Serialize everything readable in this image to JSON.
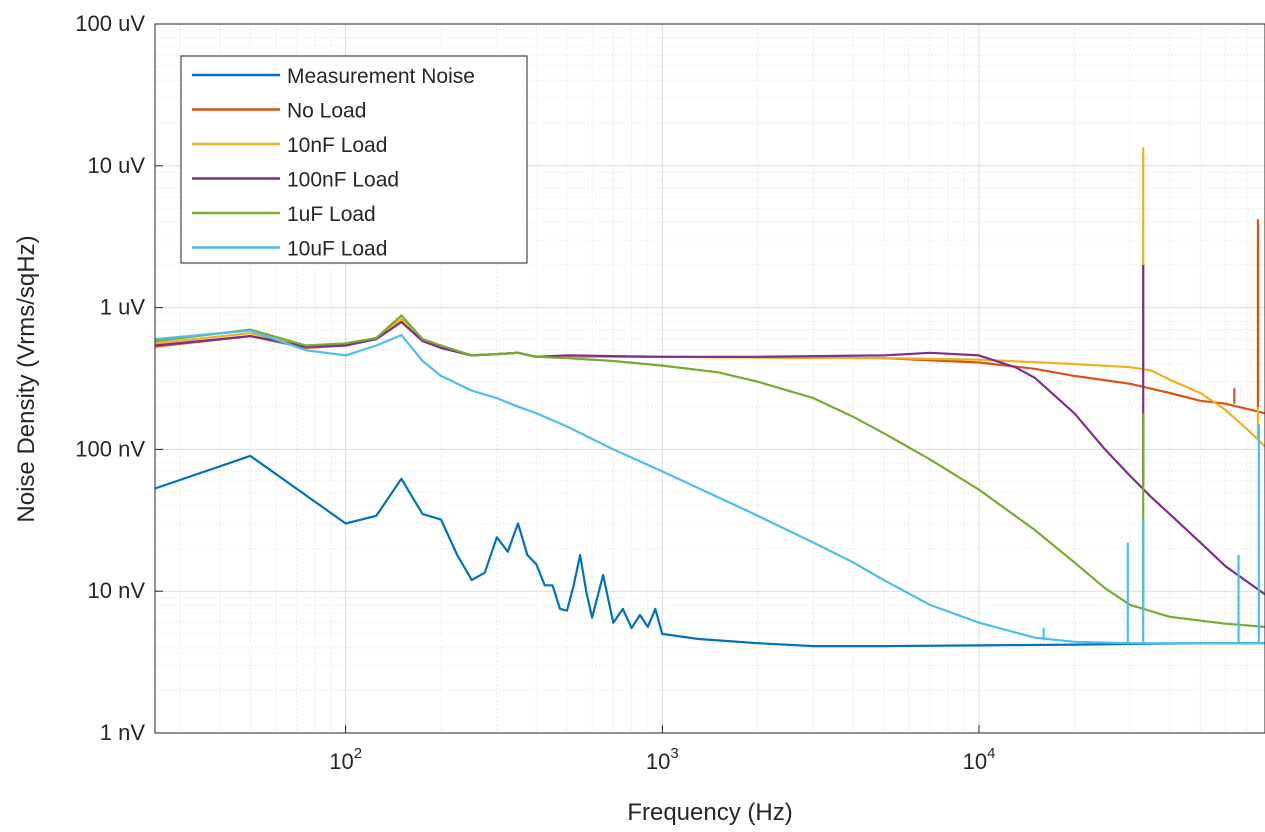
{
  "chart_data": {
    "type": "line",
    "title": "",
    "xlabel": "Frequency (Hz)",
    "ylabel": "Noise Density (Vrms/sqHz)",
    "xscale": "log",
    "yscale": "log",
    "xlim": [
      25,
      80000
    ],
    "ylim": [
      1e-09,
      0.0001
    ],
    "grid": "major and minor",
    "legend_position": "top-left",
    "x_ticks": [
      {
        "value": 100,
        "base": "10",
        "exp": "2"
      },
      {
        "value": 1000,
        "base": "10",
        "exp": "3"
      },
      {
        "value": 10000,
        "base": "10",
        "exp": "4"
      }
    ],
    "y_ticks": [
      {
        "value": 1e-09,
        "label": "1 nV"
      },
      {
        "value": 1e-08,
        "label": "10 nV"
      },
      {
        "value": 1e-07,
        "label": "100 nV"
      },
      {
        "value": 1e-06,
        "label": "1 uV"
      },
      {
        "value": 1e-05,
        "label": "10 uV"
      },
      {
        "value": 0.0001,
        "label": "100 uV"
      }
    ],
    "series": [
      {
        "name": "Measurement Noise",
        "color": "#0072BD",
        "points": [
          [
            25,
            5.3e-08
          ],
          [
            50,
            9e-08
          ],
          [
            100,
            3e-08
          ],
          [
            125,
            3.4e-08
          ],
          [
            150,
            6.2e-08
          ],
          [
            175,
            3.5e-08
          ],
          [
            200,
            3.2e-08
          ],
          [
            225,
            1.8e-08
          ],
          [
            250,
            1.2e-08
          ],
          [
            275,
            1.35e-08
          ],
          [
            300,
            2.4e-08
          ],
          [
            325,
            1.9e-08
          ],
          [
            350,
            3e-08
          ],
          [
            375,
            1.8e-08
          ],
          [
            400,
            1.55e-08
          ],
          [
            425,
            1.1e-08
          ],
          [
            450,
            1.1e-08
          ],
          [
            475,
            7.5e-09
          ],
          [
            500,
            7.3e-09
          ],
          [
            525,
            1.1e-08
          ],
          [
            550,
            1.8e-08
          ],
          [
            575,
            1e-08
          ],
          [
            600,
            6.5e-09
          ],
          [
            650,
            1.3e-08
          ],
          [
            700,
            6e-09
          ],
          [
            750,
            7.5e-09
          ],
          [
            800,
            5.5e-09
          ],
          [
            850,
            6.8e-09
          ],
          [
            900,
            5.6e-09
          ],
          [
            950,
            7.5e-09
          ],
          [
            1000,
            5e-09
          ],
          [
            1300,
            4.6e-09
          ],
          [
            1500,
            4.5e-09
          ],
          [
            2000,
            4.3e-09
          ],
          [
            3000,
            4.1e-09
          ],
          [
            5000,
            4.1e-09
          ],
          [
            10000,
            4.15e-09
          ],
          [
            20000,
            4.2e-09
          ],
          [
            50000,
            4.3e-09
          ],
          [
            80000,
            4.3e-09
          ]
        ]
      },
      {
        "name": "No Load",
        "color": "#D95319",
        "points": [
          [
            25,
            5.3e-07
          ],
          [
            50,
            6.3e-07
          ],
          [
            75,
            5.2e-07
          ],
          [
            100,
            5.4e-07
          ],
          [
            125,
            6e-07
          ],
          [
            150,
            8e-07
          ],
          [
            175,
            5.8e-07
          ],
          [
            200,
            5.2e-07
          ],
          [
            250,
            4.6e-07
          ],
          [
            300,
            4.7e-07
          ],
          [
            350,
            4.8e-07
          ],
          [
            400,
            4.5e-07
          ],
          [
            500,
            4.5e-07
          ],
          [
            1000,
            4.5e-07
          ],
          [
            2000,
            4.45e-07
          ],
          [
            5000,
            4.4e-07
          ],
          [
            10000,
            4.1e-07
          ],
          [
            15000,
            3.7e-07
          ],
          [
            20000,
            3.3e-07
          ],
          [
            30000,
            2.9e-07
          ],
          [
            40000,
            2.5e-07
          ],
          [
            50000,
            2.2e-07
          ],
          [
            60000,
            2.1e-07
          ],
          [
            80000,
            1.8e-07
          ]
        ]
      },
      {
        "name": "10nF Load",
        "color": "#EDB120",
        "points": [
          [
            25,
            5.6e-07
          ],
          [
            50,
            6.6e-07
          ],
          [
            75,
            5.3e-07
          ],
          [
            100,
            5.5e-07
          ],
          [
            125,
            6.1e-07
          ],
          [
            150,
            8.3e-07
          ],
          [
            175,
            5.9e-07
          ],
          [
            200,
            5.3e-07
          ],
          [
            250,
            4.6e-07
          ],
          [
            300,
            4.7e-07
          ],
          [
            350,
            4.8e-07
          ],
          [
            400,
            4.5e-07
          ],
          [
            500,
            4.5e-07
          ],
          [
            1000,
            4.5e-07
          ],
          [
            2000,
            4.45e-07
          ],
          [
            5000,
            4.4e-07
          ],
          [
            10000,
            4.3e-07
          ],
          [
            20000,
            4e-07
          ],
          [
            30000,
            3.8e-07
          ],
          [
            35000,
            3.6e-07
          ],
          [
            40000,
            3.1e-07
          ],
          [
            50000,
            2.5e-07
          ],
          [
            60000,
            1.9e-07
          ],
          [
            70000,
            1.4e-07
          ],
          [
            80000,
            1.05e-07
          ]
        ]
      },
      {
        "name": "100nF Load",
        "color": "#7E2F8E",
        "points": [
          [
            25,
            5.4e-07
          ],
          [
            50,
            6.3e-07
          ],
          [
            75,
            5.3e-07
          ],
          [
            100,
            5.4e-07
          ],
          [
            125,
            6e-07
          ],
          [
            150,
            7.9e-07
          ],
          [
            175,
            5.8e-07
          ],
          [
            200,
            5.2e-07
          ],
          [
            250,
            4.6e-07
          ],
          [
            300,
            4.7e-07
          ],
          [
            350,
            4.8e-07
          ],
          [
            400,
            4.5e-07
          ],
          [
            500,
            4.6e-07
          ],
          [
            1000,
            4.5e-07
          ],
          [
            2000,
            4.5e-07
          ],
          [
            5000,
            4.6e-07
          ],
          [
            7000,
            4.8e-07
          ],
          [
            10000,
            4.6e-07
          ],
          [
            13000,
            3.8e-07
          ],
          [
            15000,
            3.2e-07
          ],
          [
            20000,
            1.8e-07
          ],
          [
            25000,
            1e-07
          ],
          [
            30000,
            6.5e-08
          ],
          [
            35000,
            4.6e-08
          ],
          [
            40000,
            3.5e-08
          ],
          [
            50000,
            2.2e-08
          ],
          [
            60000,
            1.5e-08
          ],
          [
            80000,
            9.5e-09
          ]
        ]
      },
      {
        "name": "1uF Load",
        "color": "#77AC30",
        "points": [
          [
            25,
            5.8e-07
          ],
          [
            50,
            7e-07
          ],
          [
            75,
            5.4e-07
          ],
          [
            100,
            5.6e-07
          ],
          [
            125,
            6.1e-07
          ],
          [
            150,
            8.8e-07
          ],
          [
            175,
            6e-07
          ],
          [
            200,
            5.4e-07
          ],
          [
            250,
            4.6e-07
          ],
          [
            300,
            4.7e-07
          ],
          [
            350,
            4.8e-07
          ],
          [
            400,
            4.5e-07
          ],
          [
            500,
            4.4e-07
          ],
          [
            700,
            4.2e-07
          ],
          [
            1000,
            3.9e-07
          ],
          [
            1500,
            3.5e-07
          ],
          [
            2000,
            3e-07
          ],
          [
            3000,
            2.3e-07
          ],
          [
            4000,
            1.7e-07
          ],
          [
            5000,
            1.3e-07
          ],
          [
            7000,
            8.5e-08
          ],
          [
            10000,
            5.2e-08
          ],
          [
            15000,
            2.7e-08
          ],
          [
            20000,
            1.6e-08
          ],
          [
            25000,
            1.05e-08
          ],
          [
            30000,
            8e-09
          ],
          [
            40000,
            6.6e-09
          ],
          [
            60000,
            5.9e-09
          ],
          [
            80000,
            5.6e-09
          ]
        ]
      },
      {
        "name": "10uF Load",
        "color": "#4DBEEE",
        "points": [
          [
            25,
            6e-07
          ],
          [
            50,
            6.9e-07
          ],
          [
            75,
            5e-07
          ],
          [
            100,
            4.6e-07
          ],
          [
            125,
            5.4e-07
          ],
          [
            150,
            6.4e-07
          ],
          [
            175,
            4.2e-07
          ],
          [
            200,
            3.3e-07
          ],
          [
            250,
            2.6e-07
          ],
          [
            300,
            2.3e-07
          ],
          [
            350,
            2e-07
          ],
          [
            400,
            1.8e-07
          ],
          [
            500,
            1.45e-07
          ],
          [
            700,
            1e-07
          ],
          [
            1000,
            7e-08
          ],
          [
            1500,
            4.6e-08
          ],
          [
            2000,
            3.4e-08
          ],
          [
            3000,
            2.2e-08
          ],
          [
            4000,
            1.6e-08
          ],
          [
            5000,
            1.2e-08
          ],
          [
            7000,
            8e-09
          ],
          [
            10000,
            6e-09
          ],
          [
            15000,
            4.7e-09
          ],
          [
            20000,
            4.4e-09
          ],
          [
            30000,
            4.3e-09
          ],
          [
            50000,
            4.3e-09
          ],
          [
            80000,
            4.3e-09
          ]
        ]
      }
    ],
    "spikes": [
      {
        "series": "10nF Load",
        "x": 33000,
        "y_base": 3.6e-07,
        "y_peak": 1.35e-05
      },
      {
        "series": "10nF Load",
        "x": 76000,
        "y_base": 1.2e-07,
        "y_peak": 2.8e-06
      },
      {
        "series": "No Load",
        "x": 76000,
        "y_base": 2e-07,
        "y_peak": 4.2e-06
      },
      {
        "series": "No Load",
        "x": 64000,
        "y_base": 2.1e-07,
        "y_peak": 2.7e-07
      },
      {
        "series": "100nF Load",
        "x": 33000,
        "y_base": 5.5e-08,
        "y_peak": 2e-06
      },
      {
        "series": "1uF Load",
        "x": 33000,
        "y_base": 7.5e-09,
        "y_peak": 1.8e-07
      },
      {
        "series": "10uF Load",
        "x": 29500,
        "y_base": 4.3e-09,
        "y_peak": 2.2e-08
      },
      {
        "series": "10uF Load",
        "x": 33000,
        "y_base": 4.3e-09,
        "y_peak": 3.2e-08
      },
      {
        "series": "10uF Load",
        "x": 66000,
        "y_base": 4.3e-09,
        "y_peak": 1.8e-08
      },
      {
        "series": "10uF Load",
        "x": 76500,
        "y_base": 4.3e-09,
        "y_peak": 1.5e-07
      },
      {
        "series": "10uF Load",
        "x": 16000,
        "y_base": 4.5e-09,
        "y_peak": 5.5e-09
      }
    ]
  }
}
